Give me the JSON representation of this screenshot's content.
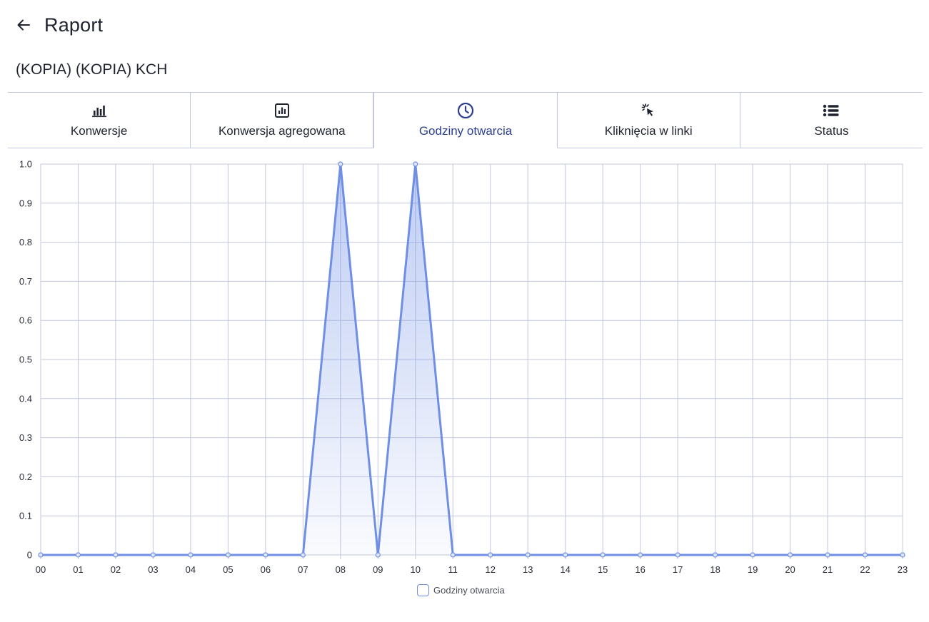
{
  "header": {
    "title": "Raport",
    "back_icon": "arrow-left-icon"
  },
  "campaign": {
    "name": "(KOPIA) (KOPIA) KCH"
  },
  "tabs": [
    {
      "label": "Konwersje",
      "icon": "bar-chart-icon",
      "active": false
    },
    {
      "label": "Konwersja agregowana",
      "icon": "boxed-bar-chart-icon",
      "active": false
    },
    {
      "label": "Godziny otwarcia",
      "icon": "clock-icon",
      "active": true
    },
    {
      "label": "Kliknięcia w linki",
      "icon": "cursor-click-icon",
      "active": false
    },
    {
      "label": "Status",
      "icon": "list-icon",
      "active": false
    }
  ],
  "colors": {
    "accent": "#2c3e8f",
    "line": "#6f8fe6",
    "grid": "#c3c7de"
  },
  "chart_data": {
    "type": "area",
    "x": [
      "00",
      "01",
      "02",
      "03",
      "04",
      "05",
      "06",
      "07",
      "08",
      "09",
      "10",
      "11",
      "12",
      "13",
      "14",
      "15",
      "16",
      "17",
      "18",
      "19",
      "20",
      "21",
      "22",
      "23"
    ],
    "series": [
      {
        "name": "Godziny otwarcia",
        "values": [
          0,
          0,
          0,
          0,
          0,
          0,
          0,
          0,
          1,
          0,
          1,
          0,
          0,
          0,
          0,
          0,
          0,
          0,
          0,
          0,
          0,
          0,
          0,
          0
        ]
      }
    ],
    "y_ticks": [
      "0",
      "0.1",
      "0.2",
      "0.3",
      "0.4",
      "0.5",
      "0.6",
      "0.7",
      "0.8",
      "0.9",
      "1.0"
    ],
    "ylim": [
      0,
      1
    ],
    "grid": true,
    "legend": "bottom-center"
  }
}
